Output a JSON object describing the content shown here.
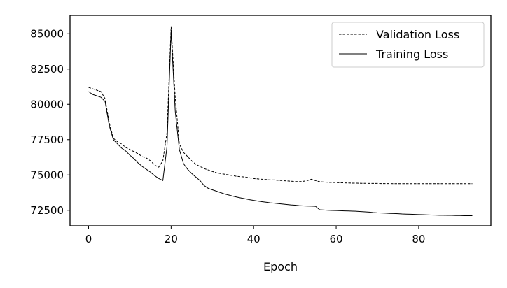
{
  "chart_data": {
    "type": "line",
    "title": "",
    "xlabel": "Epoch",
    "ylabel": "",
    "xlim": [
      -4.5,
      97.5
    ],
    "ylim": [
      71400,
      86300
    ],
    "x_ticks": [
      0,
      20,
      40,
      60,
      80
    ],
    "y_ticks": [
      72500,
      75000,
      77500,
      80000,
      82500,
      85000
    ],
    "grid": false,
    "legend_position": "top-right",
    "series": [
      {
        "name": "Validation Loss",
        "style": "dashed",
        "color": "#000000",
        "x": [
          0,
          1,
          2,
          3,
          4,
          5,
          6,
          7,
          8,
          9,
          10,
          11,
          12,
          13,
          14,
          15,
          16,
          17,
          18,
          19,
          20,
          21,
          22,
          23,
          24,
          25,
          26,
          27,
          28,
          29,
          30,
          31,
          32,
          33,
          34,
          35,
          36,
          37,
          38,
          39,
          40,
          41,
          42,
          43,
          44,
          45,
          46,
          47,
          48,
          49,
          50,
          51,
          52,
          53,
          54,
          55,
          56,
          57,
          58,
          59,
          60,
          61,
          62,
          63,
          64,
          65,
          66,
          67,
          68,
          69,
          70,
          71,
          72,
          73,
          74,
          75,
          76,
          77,
          78,
          79,
          80,
          81,
          82,
          83,
          84,
          85,
          86,
          87,
          88,
          89,
          90,
          91,
          92,
          93
        ],
        "y": [
          81200,
          81100,
          81000,
          80900,
          80400,
          78700,
          77600,
          77350,
          77200,
          76950,
          76800,
          76650,
          76500,
          76300,
          76200,
          76000,
          75700,
          75550,
          76000,
          78000,
          85500,
          80500,
          77200,
          76600,
          76300,
          76000,
          75750,
          75600,
          75450,
          75350,
          75250,
          75150,
          75100,
          75050,
          75000,
          74950,
          74900,
          74880,
          74850,
          74800,
          74750,
          74720,
          74700,
          74680,
          74650,
          74650,
          74620,
          74600,
          74580,
          74560,
          74540,
          74520,
          74550,
          74600,
          74700,
          74600,
          74520,
          74500,
          74480,
          74470,
          74460,
          74450,
          74440,
          74430,
          74420,
          74420,
          74410,
          74410,
          74400,
          74400,
          74400,
          74390,
          74390,
          74390,
          74380,
          74380,
          74380,
          74380,
          74380,
          74380,
          74380,
          74380,
          74380,
          74380,
          74380,
          74380,
          74380,
          74380,
          74380,
          74380,
          74380,
          74380,
          74380,
          74380
        ]
      },
      {
        "name": "Training Loss",
        "style": "solid",
        "color": "#000000",
        "x": [
          0,
          1,
          2,
          3,
          4,
          5,
          6,
          7,
          8,
          9,
          10,
          11,
          12,
          13,
          14,
          15,
          16,
          17,
          18,
          19,
          20,
          21,
          22,
          23,
          24,
          25,
          26,
          27,
          28,
          29,
          30,
          31,
          32,
          33,
          34,
          35,
          36,
          37,
          38,
          39,
          40,
          41,
          42,
          43,
          44,
          45,
          46,
          47,
          48,
          49,
          50,
          51,
          52,
          53,
          54,
          55,
          56,
          57,
          58,
          59,
          60,
          61,
          62,
          63,
          64,
          65,
          66,
          67,
          68,
          69,
          70,
          71,
          72,
          73,
          74,
          75,
          76,
          77,
          78,
          79,
          80,
          81,
          82,
          83,
          84,
          85,
          86,
          87,
          88,
          89,
          90,
          91,
          92,
          93
        ],
        "y": [
          80900,
          80700,
          80600,
          80500,
          80200,
          78500,
          77500,
          77200,
          76900,
          76700,
          76400,
          76150,
          75850,
          75600,
          75400,
          75200,
          74950,
          74750,
          74600,
          77000,
          85200,
          79500,
          76800,
          75800,
          75400,
          75100,
          74850,
          74600,
          74250,
          74050,
          73950,
          73850,
          73750,
          73650,
          73580,
          73500,
          73430,
          73370,
          73310,
          73250,
          73200,
          73150,
          73110,
          73070,
          73030,
          73000,
          72970,
          72940,
          72910,
          72880,
          72860,
          72830,
          72810,
          72800,
          72790,
          72780,
          72540,
          72520,
          72500,
          72490,
          72480,
          72470,
          72460,
          72450,
          72440,
          72430,
          72410,
          72390,
          72370,
          72340,
          72320,
          72310,
          72300,
          72280,
          72270,
          72260,
          72240,
          72230,
          72220,
          72210,
          72200,
          72190,
          72180,
          72170,
          72160,
          72150,
          72150,
          72140,
          72140,
          72130,
          72130,
          72120,
          72120,
          72120
        ]
      }
    ]
  }
}
